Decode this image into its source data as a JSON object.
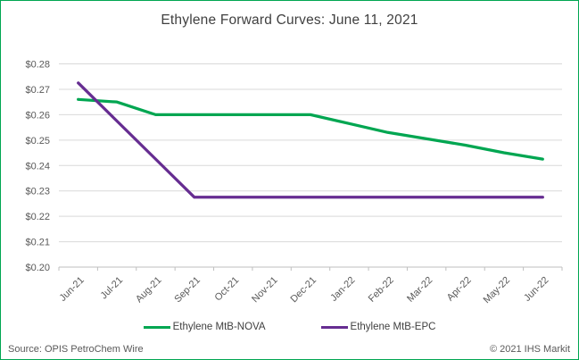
{
  "window": {
    "border_color": "#00A651",
    "background": "#FFFFFF"
  },
  "title": "Ethylene Forward Curves: June 11, 2021",
  "footer": {
    "source": "Source: OPIS PetroChem Wire",
    "copyright": "© 2021 IHS Markit"
  },
  "colors": {
    "title_text": "#404040",
    "axis_text": "#595959",
    "gridline": "#D9D9D9",
    "axis_line": "#BFBFBF",
    "series_nova": "#00A651",
    "series_epc": "#662D91"
  },
  "chart_data": {
    "type": "line",
    "title": "Ethylene Forward Curves: June 11, 2021",
    "categories": [
      "Jun-21",
      "Jul-21",
      "Aug-21",
      "Sep-21",
      "Oct-21",
      "Nov-21",
      "Dec-21",
      "Jan-22",
      "Feb-22",
      "Mar-22",
      "Apr-22",
      "May-22",
      "Jun-22"
    ],
    "series": [
      {
        "name": "Ethylene MtB-NOVA",
        "color": "#00A651",
        "values": [
          0.266,
          0.265,
          0.26,
          0.26,
          0.26,
          0.26,
          0.26,
          0.2565,
          0.253,
          0.2505,
          0.248,
          0.245,
          0.2425
        ]
      },
      {
        "name": "Ethylene MtB-EPC",
        "color": "#662D91",
        "values": [
          0.2725,
          0.2575,
          0.2425,
          0.2275,
          0.2275,
          0.2275,
          0.2275,
          0.2275,
          0.2275,
          0.2275,
          0.2275,
          0.2275,
          0.2275
        ]
      }
    ],
    "xlabel": "",
    "ylabel": "",
    "ylim": [
      0.2,
      0.28
    ],
    "ytick_step": 0.01,
    "ytick_prefix": "$",
    "grid": true,
    "legend_position": "bottom",
    "x_label_rotation": -45
  }
}
